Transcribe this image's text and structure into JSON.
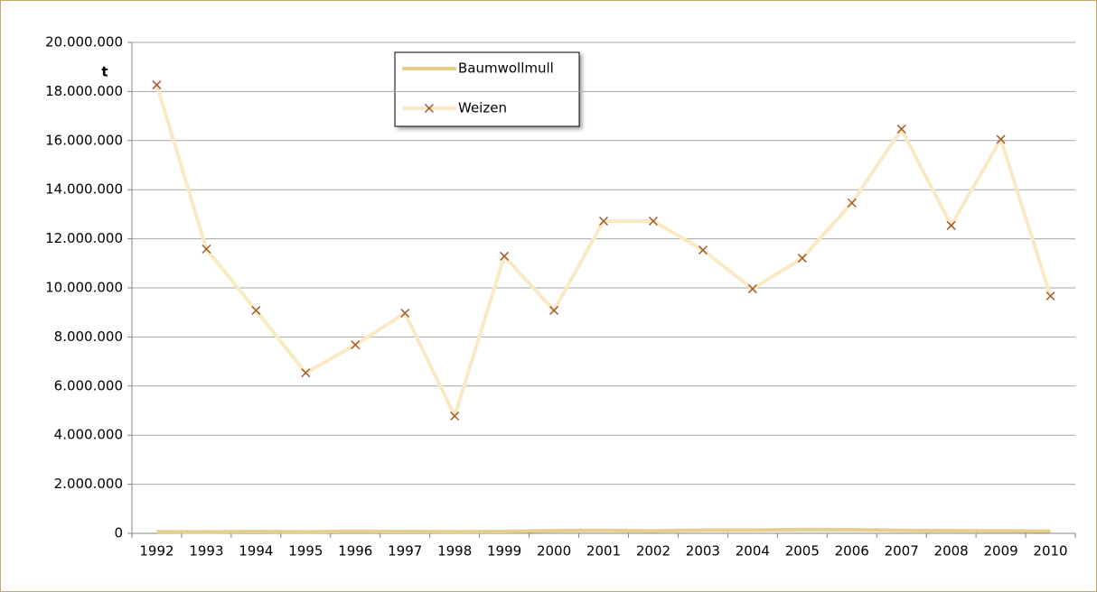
{
  "chart_data": {
    "type": "line",
    "y_label": "t",
    "categories": [
      "1992",
      "1993",
      "1994",
      "1995",
      "1996",
      "1997",
      "1998",
      "1999",
      "2000",
      "2001",
      "2002",
      "2003",
      "2004",
      "2005",
      "2006",
      "2007",
      "2008",
      "2009",
      "2010"
    ],
    "series": [
      {
        "name": "Baumwollmull",
        "color": "#e6cf8e",
        "values": [
          70000,
          60000,
          75000,
          65000,
          80000,
          75000,
          70000,
          75000,
          110000,
          120000,
          100000,
          130000,
          135000,
          150000,
          145000,
          120000,
          110000,
          100000,
          90000
        ]
      },
      {
        "name": "Weizen",
        "color": "#fbe8c4",
        "marker": "x",
        "marker_color": "#a55a2a",
        "values": [
          18270000,
          11580000,
          9080000,
          6540000,
          7680000,
          8970000,
          4780000,
          11290000,
          9080000,
          12720000,
          12720000,
          11540000,
          9960000,
          11210000,
          13460000,
          16470000,
          12540000,
          16050000,
          9670000
        ]
      }
    ],
    "ylim": [
      0,
      20000000
    ],
    "yticks": [
      0,
      {
        "value": 2000000,
        "label": "2.000.000"
      },
      {
        "value": 4000000,
        "label": "4.000.000"
      },
      {
        "value": 6000000,
        "label": "6.000.000"
      },
      {
        "value": 8000000,
        "label": "8.000.000"
      },
      {
        "value": 10000000,
        "label": "10.000.000"
      },
      {
        "value": 12000000,
        "label": "12.000.000"
      },
      {
        "value": 14000000,
        "label": "14.000.000"
      },
      {
        "value": 16000000,
        "label": "16.000.000"
      },
      {
        "value": 18000000,
        "label": "18.000.000"
      },
      {
        "value": 20000000,
        "label": "20.000.000"
      }
    ],
    "grid": true,
    "legend": "top"
  }
}
